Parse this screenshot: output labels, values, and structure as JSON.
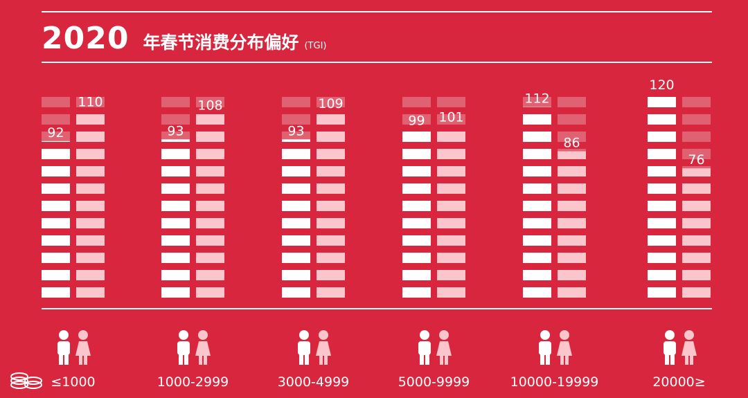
{
  "header": {
    "year": "2020",
    "title": "年春节消费分布偏好",
    "subtitle": "(TGI)"
  },
  "colors": {
    "background": "#d7263d",
    "male_bar": "#ffffff",
    "female_bar": "#fbc6cb",
    "track": "#e06272"
  },
  "icons": [
    "male-person-icon",
    "female-person-icon",
    "coin-stack-icon"
  ],
  "chart_data": {
    "type": "bar",
    "title": "年春节消费分布偏好",
    "categories": [
      "≤1000",
      "1000-2999",
      "3000-4999",
      "5000-9999",
      "10000-19999",
      "20000≥"
    ],
    "series": [
      {
        "values": [
          92,
          93,
          93,
          99,
          112,
          120
        ]
      },
      {
        "values": [
          110,
          108,
          109,
          101,
          86,
          76
        ]
      }
    ],
    "ylim": [
      0,
      120
    ],
    "grid": false
  }
}
